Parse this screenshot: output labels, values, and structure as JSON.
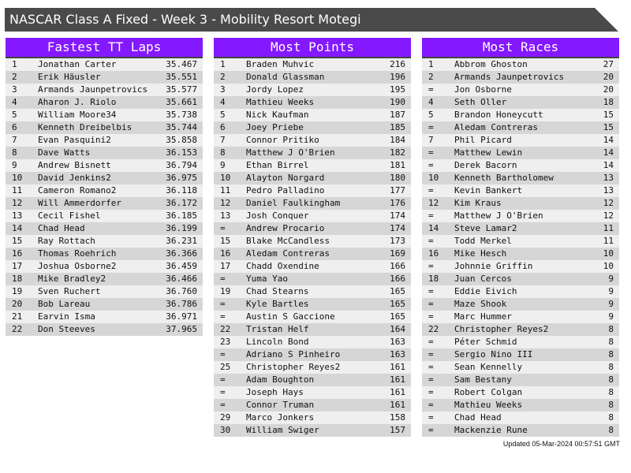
{
  "title": "NASCAR Class A Fixed - Week 3 - Mobility Resort Motegi",
  "colors": {
    "header": "#8418ff",
    "titlebar": "#4a4a4a",
    "row_light": "#efefef",
    "row_dark": "#d6d6d6"
  },
  "tables": [
    {
      "title": "Fastest TT Laps",
      "rows": [
        [
          "1",
          "Jonathan Carter",
          "35.467"
        ],
        [
          "2",
          "Erik Häusler",
          "35.551"
        ],
        [
          "3",
          "Armands Jaunpetrovics",
          "35.577"
        ],
        [
          "4",
          "Aharon J. Riolo",
          "35.661"
        ],
        [
          "5",
          "William Moore34",
          "35.738"
        ],
        [
          "6",
          "Kenneth Dreibelbis",
          "35.744"
        ],
        [
          "7",
          "Evan Pasquini2",
          "35.858"
        ],
        [
          "8",
          "Dave Watts",
          "36.153"
        ],
        [
          "9",
          "Andrew Bisnett",
          "36.794"
        ],
        [
          "10",
          "David Jenkins2",
          "36.975"
        ],
        [
          "11",
          "Cameron Romano2",
          "36.118"
        ],
        [
          "12",
          "Will Ammerdorfer",
          "36.172"
        ],
        [
          "13",
          "Cecil Fishel",
          "36.185"
        ],
        [
          "14",
          "Chad Head",
          "36.199"
        ],
        [
          "15",
          "Ray Rottach",
          "36.231"
        ],
        [
          "16",
          "Thomas Roehrich",
          "36.366"
        ],
        [
          "17",
          "Joshua Osborne2",
          "36.459"
        ],
        [
          "18",
          "Mike Bradley2",
          "36.466"
        ],
        [
          "19",
          "Sven Ruchert",
          "36.760"
        ],
        [
          "20",
          "Bob Lareau",
          "36.786"
        ],
        [
          "21",
          "Earvin Isma",
          "36.971"
        ],
        [
          "22",
          "Don Steeves",
          "37.965"
        ]
      ]
    },
    {
      "title": "Most Points",
      "rows": [
        [
          "1",
          "Braden Muhvic",
          "216"
        ],
        [
          "2",
          "Donald Glassman",
          "196"
        ],
        [
          "3",
          "Jordy Lopez",
          "195"
        ],
        [
          "4",
          "Mathieu Weeks",
          "190"
        ],
        [
          "5",
          "Nick Kaufman",
          "187"
        ],
        [
          "6",
          "Joey Priebe",
          "185"
        ],
        [
          "7",
          "Connor Pritiko",
          "184"
        ],
        [
          "8",
          "Matthew J O'Brien",
          "182"
        ],
        [
          "9",
          "Ethan Birrel",
          "181"
        ],
        [
          "10",
          "Alayton Norgard",
          "180"
        ],
        [
          "11",
          "Pedro Palladino",
          "177"
        ],
        [
          "12",
          "Daniel Faulkingham",
          "176"
        ],
        [
          "13",
          "Josh Conquer",
          "174"
        ],
        [
          "=",
          "Andrew Procario",
          "174"
        ],
        [
          "15",
          "Blake McCandless",
          "173"
        ],
        [
          "16",
          "Aledam Contreras",
          "169"
        ],
        [
          "17",
          "Chadd Oxendine",
          "166"
        ],
        [
          "=",
          "Yuma Yao",
          "166"
        ],
        [
          "19",
          "Chad Stearns",
          "165"
        ],
        [
          "=",
          "Kyle Bartles",
          "165"
        ],
        [
          "=",
          "Austin S Gaccione",
          "165"
        ],
        [
          "22",
          "Tristan Helf",
          "164"
        ],
        [
          "23",
          "Lincoln Bond",
          "163"
        ],
        [
          "=",
          "Adriano S Pinheiro",
          "163"
        ],
        [
          "25",
          "Christopher Reyes2",
          "161"
        ],
        [
          "=",
          "Adam Boughton",
          "161"
        ],
        [
          "=",
          "Joseph Hays",
          "161"
        ],
        [
          "=",
          "Connor Truman",
          "161"
        ],
        [
          "29",
          "Marco Jonkers",
          "158"
        ],
        [
          "30",
          "William Swiger",
          "157"
        ]
      ]
    },
    {
      "title": "Most Races",
      "rows": [
        [
          "1",
          "Abbrom Ghoston",
          "27"
        ],
        [
          "2",
          "Armands Jaunpetrovics",
          "20"
        ],
        [
          "=",
          "Jon Osborne",
          "20"
        ],
        [
          "4",
          "Seth Oller",
          "18"
        ],
        [
          "5",
          "Brandon Honeycutt",
          "15"
        ],
        [
          "=",
          "Aledam Contreras",
          "15"
        ],
        [
          "7",
          "Phil Picard",
          "14"
        ],
        [
          "=",
          "Matthew Lewin",
          "14"
        ],
        [
          "=",
          "Derek Bacorn",
          "14"
        ],
        [
          "10",
          "Kenneth Bartholomew",
          "13"
        ],
        [
          "=",
          "Kevin Bankert",
          "13"
        ],
        [
          "12",
          "Kim Kraus",
          "12"
        ],
        [
          "=",
          "Matthew J O'Brien",
          "12"
        ],
        [
          "14",
          "Steve Lamar2",
          "11"
        ],
        [
          "=",
          "Todd Merkel",
          "11"
        ],
        [
          "16",
          "Mike Hesch",
          "10"
        ],
        [
          "=",
          "Johnnie Griffin",
          "10"
        ],
        [
          "18",
          "Juan Cercos",
          "9"
        ],
        [
          "=",
          "Eddie Eivich",
          "9"
        ],
        [
          "=",
          "Maze Shook",
          "9"
        ],
        [
          "=",
          "Marc Hummer",
          "9"
        ],
        [
          "22",
          "Christopher Reyes2",
          "8"
        ],
        [
          "=",
          "Péter Schmid",
          "8"
        ],
        [
          "=",
          "Sergio Nino III",
          "8"
        ],
        [
          "=",
          "Sean Kennelly",
          "8"
        ],
        [
          "=",
          "Sam Bestany",
          "8"
        ],
        [
          "=",
          "Robert Colgan",
          "8"
        ],
        [
          "=",
          "Mathieu Weeks",
          "8"
        ],
        [
          "=",
          "Chad Head",
          "8"
        ],
        [
          "=",
          "Mackenzie Rune",
          "8"
        ]
      ]
    }
  ],
  "footer": "Updated 05-Mar-2024 00:57:51 GMT"
}
